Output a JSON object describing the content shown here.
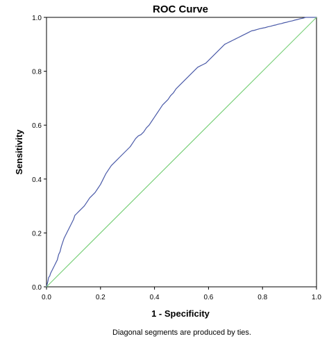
{
  "chart_data": {
    "type": "line",
    "title": "ROC Curve",
    "xlabel": "1 - Specificity",
    "ylabel": "Sensitivity",
    "xlim": [
      0.0,
      1.0
    ],
    "ylim": [
      0.0,
      1.0
    ],
    "x_ticks": [
      0.0,
      0.2,
      0.4,
      0.6,
      0.8,
      1.0
    ],
    "y_ticks": [
      0.0,
      0.2,
      0.4,
      0.6,
      0.8,
      1.0
    ],
    "x_tick_labels": [
      "0.0",
      "0.2",
      "0.4",
      "0.6",
      "0.8",
      "1.0"
    ],
    "y_tick_labels": [
      "0.0",
      "0.2",
      "0.4",
      "0.6",
      "0.8",
      "1.0"
    ],
    "grid": false,
    "legend": "none",
    "footnote": "Diagonal segments are produced by ties.",
    "series": [
      {
        "color": "#4a5aa8",
        "x": [
          0.0,
          0.005,
          0.008,
          0.012,
          0.015,
          0.02,
          0.025,
          0.03,
          0.035,
          0.04,
          0.045,
          0.05,
          0.055,
          0.06,
          0.065,
          0.07,
          0.075,
          0.08,
          0.09,
          0.1,
          0.105,
          0.11,
          0.12,
          0.13,
          0.14,
          0.15,
          0.16,
          0.17,
          0.18,
          0.19,
          0.2,
          0.21,
          0.22,
          0.23,
          0.24,
          0.25,
          0.26,
          0.27,
          0.28,
          0.29,
          0.3,
          0.31,
          0.32,
          0.33,
          0.34,
          0.35,
          0.36,
          0.37,
          0.38,
          0.39,
          0.4,
          0.41,
          0.42,
          0.43,
          0.44,
          0.45,
          0.46,
          0.47,
          0.48,
          0.49,
          0.5,
          0.51,
          0.52,
          0.53,
          0.54,
          0.55,
          0.56,
          0.57,
          0.58,
          0.59,
          0.6,
          0.61,
          0.62,
          0.63,
          0.64,
          0.65,
          0.66,
          0.67,
          0.68,
          0.69,
          0.7,
          0.71,
          0.72,
          0.73,
          0.74,
          0.75,
          0.76,
          0.77,
          0.78,
          0.79,
          0.8,
          0.81,
          0.82,
          0.83,
          0.84,
          0.85,
          0.86,
          0.87,
          0.88,
          0.89,
          0.9,
          0.91,
          0.92,
          0.93,
          0.94,
          0.95,
          0.96,
          0.97,
          0.98,
          0.99,
          1.0
        ],
        "y": [
          0.0,
          0.02,
          0.035,
          0.04,
          0.05,
          0.06,
          0.07,
          0.08,
          0.09,
          0.1,
          0.12,
          0.13,
          0.15,
          0.165,
          0.18,
          0.19,
          0.2,
          0.21,
          0.23,
          0.25,
          0.265,
          0.27,
          0.28,
          0.29,
          0.3,
          0.315,
          0.33,
          0.34,
          0.35,
          0.365,
          0.38,
          0.4,
          0.42,
          0.435,
          0.45,
          0.46,
          0.47,
          0.48,
          0.49,
          0.5,
          0.51,
          0.52,
          0.535,
          0.55,
          0.56,
          0.565,
          0.575,
          0.59,
          0.6,
          0.615,
          0.63,
          0.645,
          0.66,
          0.675,
          0.685,
          0.695,
          0.71,
          0.72,
          0.735,
          0.745,
          0.755,
          0.765,
          0.775,
          0.785,
          0.795,
          0.805,
          0.815,
          0.82,
          0.825,
          0.83,
          0.84,
          0.85,
          0.86,
          0.87,
          0.88,
          0.89,
          0.9,
          0.905,
          0.91,
          0.915,
          0.92,
          0.925,
          0.93,
          0.935,
          0.94,
          0.945,
          0.95,
          0.952,
          0.955,
          0.958,
          0.96,
          0.962,
          0.965,
          0.967,
          0.97,
          0.972,
          0.975,
          0.977,
          0.98,
          0.982,
          0.985,
          0.987,
          0.99,
          0.992,
          0.995,
          0.997,
          1.0,
          1.0,
          1.0,
          1.0,
          1.0
        ]
      },
      {
        "color": "#7ad07a",
        "x": [
          0.0,
          1.0
        ],
        "y": [
          0.0,
          1.0
        ]
      }
    ]
  }
}
